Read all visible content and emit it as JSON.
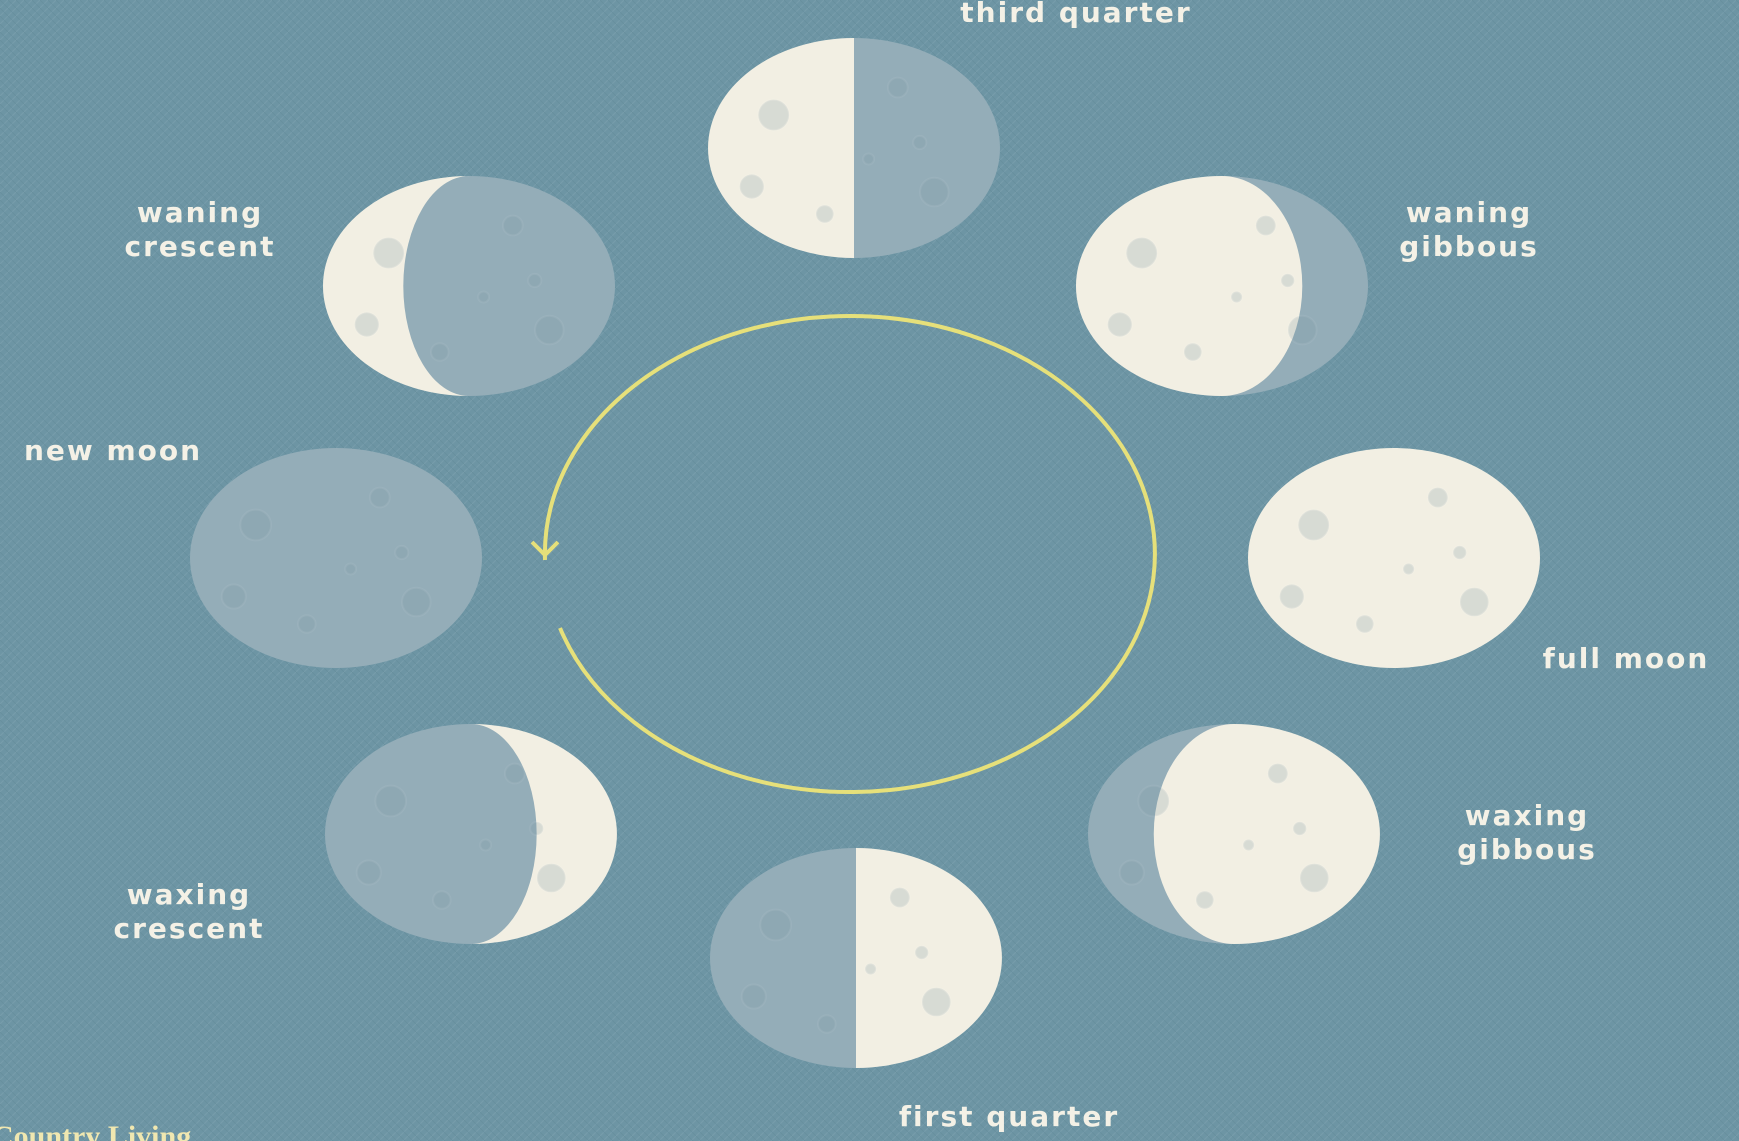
{
  "phases": [
    {
      "lines": [
        "third quarter"
      ]
    },
    {
      "lines": [
        "waning",
        "crescent"
      ]
    },
    {
      "lines": [
        "waning",
        "gibbous"
      ]
    },
    {
      "lines": [
        "new moon"
      ]
    },
    {
      "lines": [
        "full moon"
      ]
    },
    {
      "lines": [
        "waxing",
        "crescent"
      ]
    },
    {
      "lines": [
        "waxing",
        "gibbous"
      ]
    },
    {
      "lines": [
        "first quarter"
      ]
    }
  ],
  "brand": "Country Living"
}
